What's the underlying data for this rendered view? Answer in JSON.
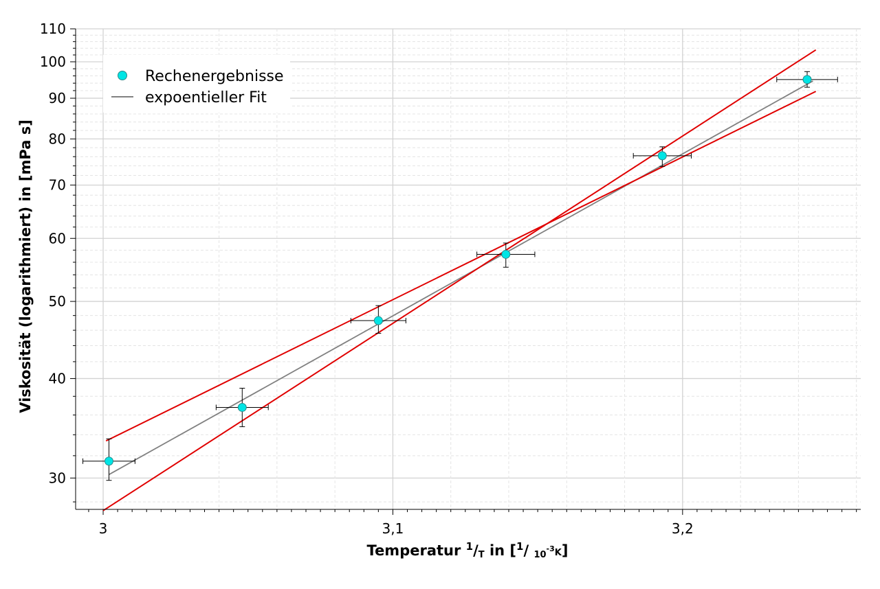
{
  "chart_data": {
    "type": "scatter",
    "xlabel": {
      "main": "Temperatur ",
      "frac_num": "1",
      "frac_slash": "/",
      "frac_den": "T",
      "mid": " in [",
      "unit_num": "1",
      "unit_slash": "/ ",
      "unit_base": "10",
      "unit_exp": "-3",
      "unit_k": "K",
      "end": "]"
    },
    "ylabel": "Viskosität (logarithmiert) in [mPa s]",
    "x_scale": "reciprocal temperature (1/T, 10^-3 K^-1)",
    "y_scale": "log",
    "xlim": [
      2.9905,
      3.2615
    ],
    "ylim": [
      27.4,
      110
    ],
    "x_ticks": [
      3.0,
      3.1,
      3.2
    ],
    "x_tick_labels": [
      "3",
      "3,1",
      "3,2"
    ],
    "x_minor_ticks": [
      2.995,
      3.005,
      3.01,
      3.015,
      3.02,
      3.025,
      3.03,
      3.035,
      3.04,
      3.045,
      3.05,
      3.055,
      3.06,
      3.065,
      3.07,
      3.075,
      3.08,
      3.085,
      3.09,
      3.095,
      3.105,
      3.11,
      3.115,
      3.12,
      3.125,
      3.13,
      3.135,
      3.14,
      3.145,
      3.15,
      3.155,
      3.16,
      3.165,
      3.17,
      3.175,
      3.18,
      3.185,
      3.19,
      3.195,
      3.205,
      3.21,
      3.215,
      3.22,
      3.225,
      3.23,
      3.235,
      3.24,
      3.245,
      3.25,
      3.255,
      3.26
    ],
    "x_minor_grid": [
      3.04,
      3.06,
      3.08,
      3.12,
      3.14,
      3.16,
      3.18,
      3.22,
      3.24,
      3.26
    ],
    "y_ticks": [
      30,
      40,
      50,
      60,
      70,
      80,
      90,
      100,
      110
    ],
    "y_tick_labels": [
      "30",
      "40",
      "50",
      "60",
      "70",
      "80",
      "90",
      "100",
      "110"
    ],
    "y_minor_ticks": [
      28,
      32,
      34,
      36,
      38,
      42,
      44,
      46,
      48,
      52,
      54,
      56,
      58,
      62,
      64,
      66,
      68,
      72,
      74,
      76,
      78,
      82,
      84,
      86,
      88,
      92,
      94,
      96,
      98,
      102,
      104,
      106,
      108
    ],
    "grid": true,
    "legend_position": "top-left",
    "series": [
      {
        "name": "Rechenergebnisse",
        "kind": "points",
        "color": "#00e5e5",
        "points": [
          {
            "x": 3.002,
            "y": 31.5,
            "xerr": 0.009,
            "y_low": 29.8,
            "y_high": 33.6
          },
          {
            "x": 3.048,
            "y": 36.8,
            "xerr": 0.009,
            "y_low": 34.8,
            "y_high": 38.9
          },
          {
            "x": 3.095,
            "y": 47.3,
            "xerr": 0.0095,
            "y_low": 45.6,
            "y_high": 49.4
          },
          {
            "x": 3.139,
            "y": 57.3,
            "xerr": 0.01,
            "y_low": 55.2,
            "y_high": 59.2
          },
          {
            "x": 3.193,
            "y": 76.2,
            "xerr": 0.01,
            "y_low": 73.9,
            "y_high": 78.2
          },
          {
            "x": 3.243,
            "y": 95.0,
            "xerr": 0.0105,
            "y_low": 92.9,
            "y_high": 97.2
          }
        ]
      },
      {
        "name": "expoentieller Fit",
        "kind": "line",
        "color": "#808080",
        "points": [
          {
            "x": 3.002,
            "y": 30.3
          },
          {
            "x": 3.245,
            "y": 94.6
          }
        ]
      },
      {
        "kind": "line",
        "color": "#e00000",
        "points": [
          {
            "x": 3.001,
            "y": 33.4
          },
          {
            "x": 3.246,
            "y": 91.8
          }
        ]
      },
      {
        "kind": "line",
        "color": "#e00000",
        "points": [
          {
            "x": 3.0,
            "y": 27.3
          },
          {
            "x": 3.246,
            "y": 103.5
          }
        ]
      }
    ]
  }
}
